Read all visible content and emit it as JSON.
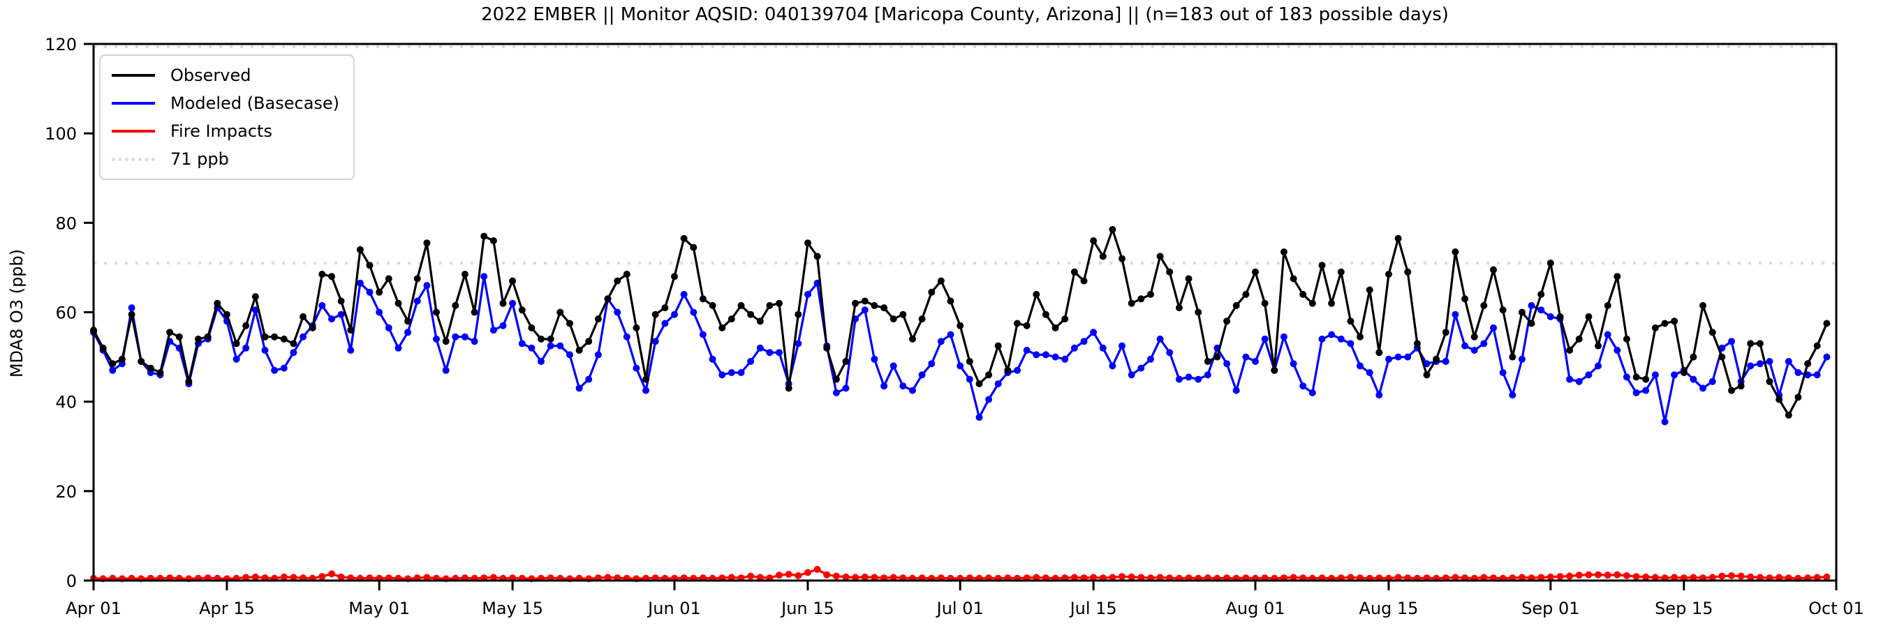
{
  "chart_data": {
    "type": "line",
    "title": "2022 EMBER || Monitor AQSID: 040139704 [Maricopa County, Arizona] || (n=183 out of 183 possible days)",
    "ylabel": "MDA8 O3 (ppb)",
    "ylim": [
      0,
      120
    ],
    "yticks": [
      0,
      20,
      40,
      60,
      80,
      100,
      120
    ],
    "x_tick_labels": [
      "Apr 01",
      "Apr 15",
      "May 01",
      "May 15",
      "Jun 01",
      "Jun 15",
      "Jul 01",
      "Jul 15",
      "Aug 01",
      "Aug 15",
      "Sep 01",
      "Sep 15",
      "Oct 01"
    ],
    "x_tick_days": [
      0,
      14,
      30,
      44,
      61,
      75,
      91,
      105,
      122,
      136,
      153,
      167,
      183
    ],
    "n_days": 183,
    "x_start_label": "Apr 01",
    "x_end_label": "Oct 01",
    "threshold_ppb": 71,
    "grid": false,
    "legend_position": "upper left",
    "legend_items": [
      {
        "label": "Observed",
        "color": "#000000",
        "dotted": false
      },
      {
        "label": "Modeled (Basecase)",
        "color": "#0000ff",
        "dotted": false
      },
      {
        "label": "Fire Impacts",
        "color": "#ff0000",
        "dotted": false
      },
      {
        "label": "71 ppb",
        "color": "#dcdcdc",
        "dotted": true
      }
    ],
    "series": [
      {
        "name": "Observed",
        "color": "#000000",
        "values": [
          56,
          52,
          48.5,
          49.5,
          59.5,
          49,
          47.5,
          46.5,
          55.5,
          54.5,
          44.5,
          54,
          54.5,
          62,
          59.5,
          53,
          57,
          63.5,
          54.5,
          54.5,
          54,
          53,
          59,
          56.5,
          68.5,
          68,
          62.5,
          56,
          74,
          70.5,
          64.5,
          67.5,
          62,
          58,
          67.5,
          75.5,
          60,
          53.5,
          61.5,
          68.5,
          60,
          77,
          76,
          62,
          67,
          60.5,
          56.5,
          54,
          54,
          60,
          57.5,
          51.5,
          53.5,
          58.5,
          63,
          67,
          68.5,
          56.5,
          45,
          59.5,
          61,
          68,
          76.5,
          74.5,
          63,
          61.5,
          56.5,
          58.5,
          61.5,
          59.5,
          58,
          61.5,
          62,
          43,
          59.5,
          75.5,
          72.5,
          52,
          45,
          49,
          62,
          62.5,
          61.5,
          61,
          58.5,
          59.5,
          54,
          58.5,
          64.5,
          67,
          62.5,
          57,
          49,
          44,
          46,
          52.5,
          47,
          57.5,
          57,
          64,
          59.5,
          56.5,
          58.5,
          69,
          67,
          76,
          72.5,
          78.5,
          72,
          62,
          63,
          64,
          72.5,
          69,
          61,
          67.5,
          60,
          49,
          50,
          58,
          61.5,
          64,
          69,
          62,
          47,
          73.5,
          67.5,
          64,
          62,
          70.5,
          62,
          69,
          58,
          54.5,
          65,
          51,
          68.5,
          76.5,
          69,
          53,
          46,
          49.5,
          55.5,
          73.5,
          63,
          54.5,
          61.5,
          69.5,
          60.5,
          50,
          60,
          57.5,
          64,
          71,
          59,
          51.5,
          54,
          59,
          52.5,
          61.5,
          68,
          54,
          45.5,
          45,
          56.5,
          57.5,
          58,
          46.5,
          50,
          61.5,
          55.5,
          50,
          42.5,
          43.5,
          53,
          53,
          44.5,
          40.5,
          37,
          41,
          48.5,
          52.5,
          57.5
        ]
      },
      {
        "name": "Modeled (Basecase)",
        "color": "#0000ff",
        "values": [
          55.5,
          51.5,
          47,
          48.5,
          61,
          49,
          46.5,
          46,
          53.5,
          52,
          44,
          53,
          54,
          61,
          58,
          49.5,
          52,
          60.5,
          51.5,
          47,
          47.5,
          51,
          54.5,
          57,
          61.5,
          58.5,
          59.5,
          51.5,
          66.5,
          64.5,
          60,
          56.5,
          52,
          55.5,
          62.5,
          66,
          54,
          47,
          54.5,
          54.5,
          53.5,
          68,
          56,
          57,
          62,
          53,
          52,
          49,
          52.5,
          52.5,
          50.5,
          43,
          45,
          50.5,
          63,
          60,
          54.5,
          47.5,
          42.5,
          53.5,
          57.5,
          59.5,
          64,
          60,
          55,
          49.5,
          46,
          46.5,
          46.5,
          49,
          52,
          51,
          51,
          44,
          53,
          64,
          66.5,
          52.5,
          42,
          43,
          58.5,
          60.5,
          49.5,
          43.5,
          48,
          43.5,
          42.5,
          46,
          48.5,
          53.5,
          55,
          48,
          45,
          36.5,
          40.5,
          44,
          46.5,
          47,
          51.5,
          50.5,
          50.5,
          50,
          49.5,
          52,
          53.5,
          55.5,
          52,
          48,
          52.5,
          46,
          47.5,
          49.5,
          54,
          51,
          45,
          45.5,
          45,
          46,
          52,
          48.5,
          42.5,
          50,
          49,
          54,
          47,
          54.5,
          48.5,
          43.5,
          42,
          54,
          55,
          54,
          53,
          48,
          46.5,
          41.5,
          49.5,
          50,
          50,
          52,
          48.5,
          49,
          49,
          59.5,
          52.5,
          51.5,
          53,
          56.5,
          46.5,
          41.5,
          49.5,
          61.5,
          60.5,
          59,
          58.5,
          45,
          44.5,
          46,
          48,
          55,
          51.5,
          45.5,
          42,
          42.5,
          46,
          35.5,
          46,
          47,
          45,
          43,
          44.5,
          52,
          53.5,
          44.5,
          48,
          48.5,
          49,
          41.5,
          49,
          46.5,
          46,
          46,
          50
        ]
      },
      {
        "name": "Fire Impacts",
        "color": "#ff0000",
        "values": [
          0.5,
          0.4,
          0.5,
          0.4,
          0.5,
          0.4,
          0.5,
          0.5,
          0.6,
          0.5,
          0.4,
          0.5,
          0.6,
          0.5,
          0.4,
          0.5,
          0.7,
          0.8,
          0.6,
          0.5,
          0.8,
          0.7,
          0.6,
          0.5,
          0.9,
          1.5,
          0.8,
          0.6,
          0.5,
          0.6,
          0.5,
          0.6,
          0.5,
          0.4,
          0.6,
          0.7,
          0.5,
          0.4,
          0.5,
          0.6,
          0.5,
          0.6,
          0.7,
          0.5,
          0.6,
          0.5,
          0.4,
          0.5,
          0.6,
          0.5,
          0.4,
          0.5,
          0.4,
          0.6,
          0.7,
          0.6,
          0.5,
          0.4,
          0.5,
          0.6,
          0.5,
          0.5,
          0.6,
          0.5,
          0.6,
          0.5,
          0.6,
          0.7,
          0.6,
          1.0,
          0.7,
          0.6,
          1.2,
          1.4,
          1.1,
          1.8,
          2.5,
          1.3,
          1.0,
          0.8,
          0.7,
          0.8,
          0.7,
          0.6,
          0.7,
          0.6,
          0.5,
          0.6,
          0.5,
          0.6,
          0.5,
          0.5,
          0.6,
          0.5,
          0.6,
          0.5,
          0.6,
          0.5,
          0.6,
          0.7,
          0.6,
          0.5,
          0.6,
          0.7,
          0.6,
          0.7,
          0.6,
          0.7,
          0.9,
          0.8,
          0.7,
          0.6,
          0.7,
          0.6,
          0.5,
          0.6,
          0.5,
          0.6,
          0.5,
          0.6,
          0.5,
          0.6,
          0.5,
          0.6,
          0.5,
          0.6,
          0.7,
          0.6,
          0.5,
          0.6,
          0.5,
          0.6,
          0.7,
          0.6,
          0.5,
          0.6,
          0.5,
          0.7,
          0.6,
          0.5,
          0.6,
          0.5,
          0.6,
          0.7,
          0.6,
          0.5,
          0.7,
          0.6,
          0.5,
          0.6,
          0.7,
          0.6,
          0.7,
          0.8,
          0.9,
          1.0,
          1.2,
          1.3,
          1.3,
          1.2,
          1.3,
          1.1,
          0.9,
          0.8,
          0.7,
          0.6,
          0.7,
          0.6,
          0.7,
          0.6,
          0.7,
          1.0,
          1.1,
          1.0,
          0.8,
          0.7,
          0.6,
          0.7,
          0.6,
          0.5,
          0.6,
          0.7,
          0.8
        ]
      }
    ]
  }
}
